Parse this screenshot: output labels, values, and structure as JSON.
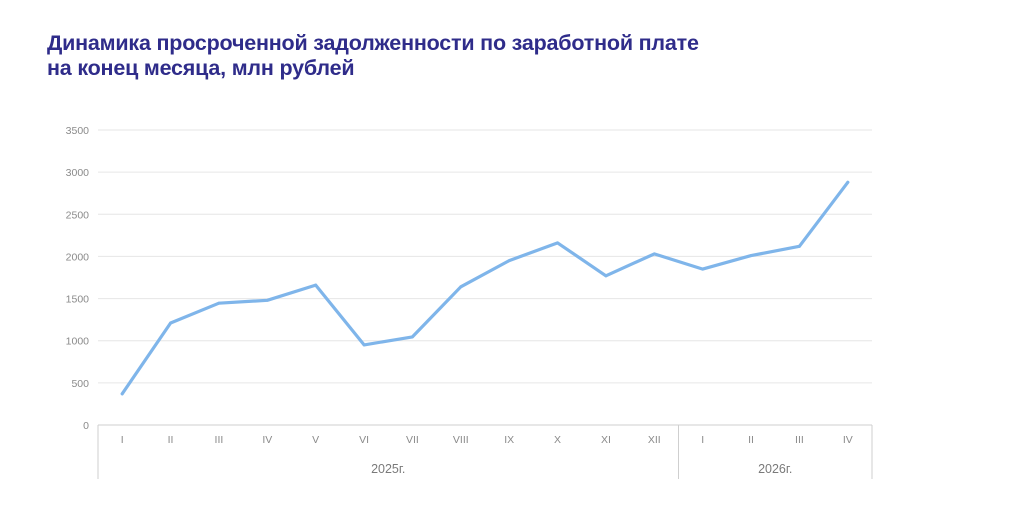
{
  "title": {
    "line1": "Динамика просроченной задолженности по заработной плате",
    "line2": "на конец месяца, млн рублей"
  },
  "colors": {
    "title": "#2f2c8a",
    "line": "#7fb5ea",
    "grid": "#e6e6e6",
    "axis": "#cfcfcf"
  },
  "chart_data": {
    "type": "line",
    "title": "Динамика просроченной задолженности по заработной плате на конец месяца, млн рублей",
    "categories": [
      "I",
      "II",
      "III",
      "IV",
      "V",
      "VI",
      "VII",
      "VIII",
      "IX",
      "X",
      "XI",
      "XII",
      "I",
      "II",
      "III",
      "IV"
    ],
    "groups": [
      {
        "label": "2025г.",
        "count": 12
      },
      {
        "label": "2026г.",
        "count": 4
      }
    ],
    "series": [
      {
        "values": [
          370,
          1210,
          1445,
          1480,
          1660,
          950,
          1045,
          1640,
          1950,
          2160,
          1770,
          2030,
          1850,
          2010,
          2120,
          2880
        ]
      }
    ],
    "yticks": [
      "0",
      "500",
      "1000",
      "1500",
      "2000",
      "2500",
      "3000",
      "3500"
    ],
    "ylim": [
      0,
      3500
    ],
    "grid": true,
    "legend": "none"
  }
}
